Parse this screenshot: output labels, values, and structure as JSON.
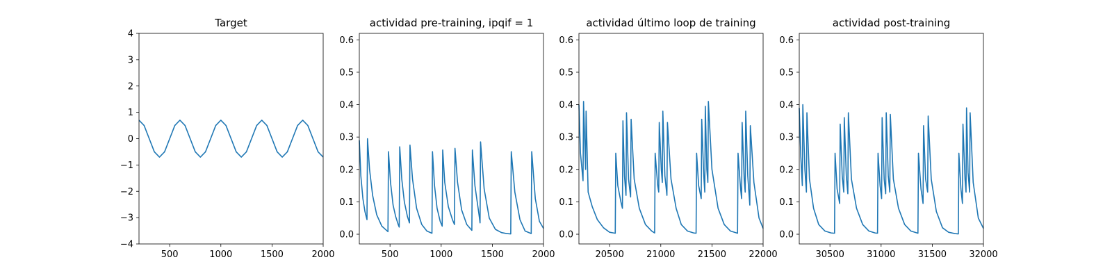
{
  "chart_data": [
    {
      "type": "line",
      "title": "Target",
      "xlim": [
        200,
        2000
      ],
      "ylim": [
        -4,
        4
      ],
      "xticks": [
        500,
        1000,
        1500,
        2000
      ],
      "yticks": [
        -4,
        -3,
        -2,
        -1,
        0,
        1,
        2,
        3,
        4
      ],
      "grid": false,
      "legend": "none",
      "color": "#1f77b4",
      "series": [
        {
          "x": [
            200,
            250,
            300,
            350,
            400,
            450,
            500,
            550,
            600,
            650,
            700,
            750,
            800,
            850,
            900,
            950,
            1000,
            1050,
            1100,
            1150,
            1200,
            1250,
            1300,
            1350,
            1400,
            1450,
            1500,
            1550,
            1600,
            1650,
            1700,
            1750,
            1800,
            1850,
            1900,
            1950,
            2000
          ],
          "y": [
            0.7,
            0.5,
            0.0,
            -0.5,
            -0.7,
            -0.5,
            0.0,
            0.5,
            0.7,
            0.5,
            0.0,
            -0.5,
            -0.7,
            -0.5,
            0.0,
            0.5,
            0.7,
            0.5,
            0.0,
            -0.5,
            -0.7,
            -0.5,
            0.0,
            0.5,
            0.7,
            0.5,
            0.0,
            -0.5,
            -0.7,
            -0.5,
            0.0,
            0.5,
            0.7,
            0.5,
            0.0,
            -0.5,
            -0.7
          ]
        }
      ]
    },
    {
      "type": "line",
      "title": "actividad pre-training, ipqif = 1",
      "xlim": [
        200,
        2000
      ],
      "ylim": [
        -0.03,
        0.62
      ],
      "xticks": [
        500,
        1000,
        1500,
        2000
      ],
      "yticks": [
        0.0,
        0.1,
        0.2,
        0.3,
        0.4,
        0.5,
        0.6
      ],
      "grid": false,
      "legend": "none",
      "color": "#1f77b4",
      "series": [
        {
          "x": [
            200,
            215,
            235,
            255,
            275,
            280,
            300,
            330,
            370,
            420,
            480,
            485,
            505,
            530,
            555,
            580,
            590,
            595,
            615,
            640,
            670,
            690,
            695,
            720,
            760,
            810,
            860,
            910,
            915,
            935,
            960,
            990,
            1010,
            1015,
            1035,
            1070,
            1110,
            1130,
            1135,
            1160,
            1200,
            1250,
            1300,
            1305,
            1330,
            1370,
            1380,
            1385,
            1420,
            1470,
            1530,
            1590,
            1640,
            1680,
            1685,
            1720,
            1770,
            1820,
            1880,
            1885,
            1920,
            1960,
            2000
          ],
          "y": [
            0.29,
            0.18,
            0.11,
            0.07,
            0.045,
            0.295,
            0.2,
            0.12,
            0.06,
            0.025,
            0.008,
            0.255,
            0.16,
            0.09,
            0.055,
            0.03,
            0.022,
            0.27,
            0.17,
            0.1,
            0.055,
            0.035,
            0.275,
            0.17,
            0.08,
            0.03,
            0.01,
            0.003,
            0.255,
            0.15,
            0.08,
            0.04,
            0.025,
            0.26,
            0.16,
            0.085,
            0.045,
            0.03,
            0.265,
            0.16,
            0.075,
            0.03,
            0.012,
            0.26,
            0.15,
            0.06,
            0.035,
            0.285,
            0.14,
            0.05,
            0.015,
            0.005,
            0.002,
            0.001,
            0.255,
            0.13,
            0.045,
            0.01,
            0.002,
            0.255,
            0.11,
            0.04,
            0.018
          ]
        }
      ]
    },
    {
      "type": "line",
      "title": "actividad último loop de training",
      "xlim": [
        20200,
        22000
      ],
      "ylim": [
        -0.03,
        0.62
      ],
      "xticks": [
        20500,
        21000,
        21500,
        22000
      ],
      "yticks": [
        0.0,
        0.1,
        0.2,
        0.3,
        0.4,
        0.5,
        0.6
      ],
      "grid": false,
      "legend": "none",
      "color": "#1f77b4",
      "series": [
        {
          "x": [
            20200,
            20215,
            20240,
            20245,
            20265,
            20270,
            20290,
            20330,
            20380,
            20440,
            20500,
            20555,
            20560,
            20580,
            20610,
            20625,
            20630,
            20645,
            20660,
            20665,
            20685,
            20705,
            20710,
            20740,
            20790,
            20850,
            20910,
            20940,
            20945,
            20970,
            20980,
            20985,
            21005,
            21015,
            21020,
            21040,
            21060,
            21065,
            21100,
            21150,
            21200,
            21260,
            21320,
            21345,
            21350,
            21370,
            21395,
            21400,
            21420,
            21430,
            21435,
            21450,
            21460,
            21465,
            21500,
            21560,
            21620,
            21680,
            21740,
            21750,
            21755,
            21780,
            21790,
            21795,
            21815,
            21825,
            21830,
            21850,
            21870,
            21875,
            21910,
            21960,
            22000
          ],
          "y": [
            0.4,
            0.25,
            0.165,
            0.41,
            0.2,
            0.38,
            0.13,
            0.085,
            0.045,
            0.02,
            0.006,
            0.003,
            0.25,
            0.15,
            0.1,
            0.08,
            0.35,
            0.18,
            0.12,
            0.375,
            0.17,
            0.115,
            0.355,
            0.17,
            0.08,
            0.03,
            0.01,
            0.004,
            0.25,
            0.15,
            0.13,
            0.345,
            0.2,
            0.16,
            0.38,
            0.18,
            0.12,
            0.345,
            0.17,
            0.08,
            0.03,
            0.01,
            0.004,
            0.003,
            0.25,
            0.15,
            0.11,
            0.355,
            0.18,
            0.13,
            0.395,
            0.2,
            0.16,
            0.41,
            0.2,
            0.08,
            0.03,
            0.01,
            0.004,
            0.003,
            0.25,
            0.14,
            0.11,
            0.345,
            0.17,
            0.13,
            0.38,
            0.18,
            0.09,
            0.335,
            0.16,
            0.05,
            0.018
          ]
        }
      ]
    },
    {
      "type": "line",
      "title": "actividad post-training",
      "xlim": [
        30200,
        32000
      ],
      "ylim": [
        -0.03,
        0.62
      ],
      "xticks": [
        30500,
        31000,
        31500,
        32000
      ],
      "yticks": [
        0.0,
        0.1,
        0.2,
        0.3,
        0.4,
        0.5,
        0.6
      ],
      "grid": false,
      "legend": "none",
      "color": "#1f77b4",
      "series": [
        {
          "x": [
            30200,
            30215,
            30230,
            30235,
            30255,
            30270,
            30275,
            30300,
            30340,
            30390,
            30450,
            30510,
            30545,
            30550,
            30570,
            30595,
            30600,
            30620,
            30635,
            30640,
            30660,
            30675,
            30680,
            30710,
            30760,
            30820,
            30880,
            30940,
            30965,
            30970,
            30990,
            31005,
            31010,
            31030,
            31045,
            31050,
            31070,
            31085,
            31090,
            31120,
            31170,
            31230,
            31290,
            31350,
            31360,
            31365,
            31390,
            31410,
            31415,
            31435,
            31455,
            31460,
            31490,
            31540,
            31600,
            31660,
            31720,
            31755,
            31760,
            31780,
            31795,
            31800,
            31820,
            31830,
            31835,
            31850,
            31865,
            31870,
            31900,
            31950,
            32000
          ],
          "y": [
            0.39,
            0.24,
            0.15,
            0.4,
            0.2,
            0.13,
            0.375,
            0.17,
            0.08,
            0.03,
            0.01,
            0.004,
            0.003,
            0.25,
            0.14,
            0.095,
            0.34,
            0.18,
            0.13,
            0.36,
            0.18,
            0.125,
            0.375,
            0.17,
            0.08,
            0.03,
            0.01,
            0.004,
            0.003,
            0.25,
            0.15,
            0.11,
            0.36,
            0.17,
            0.125,
            0.375,
            0.18,
            0.13,
            0.37,
            0.17,
            0.08,
            0.03,
            0.01,
            0.004,
            0.003,
            0.25,
            0.14,
            0.095,
            0.335,
            0.17,
            0.13,
            0.365,
            0.17,
            0.07,
            0.02,
            0.006,
            0.002,
            0.001,
            0.25,
            0.14,
            0.095,
            0.34,
            0.17,
            0.13,
            0.39,
            0.19,
            0.13,
            0.375,
            0.16,
            0.05,
            0.018
          ]
        }
      ]
    }
  ]
}
